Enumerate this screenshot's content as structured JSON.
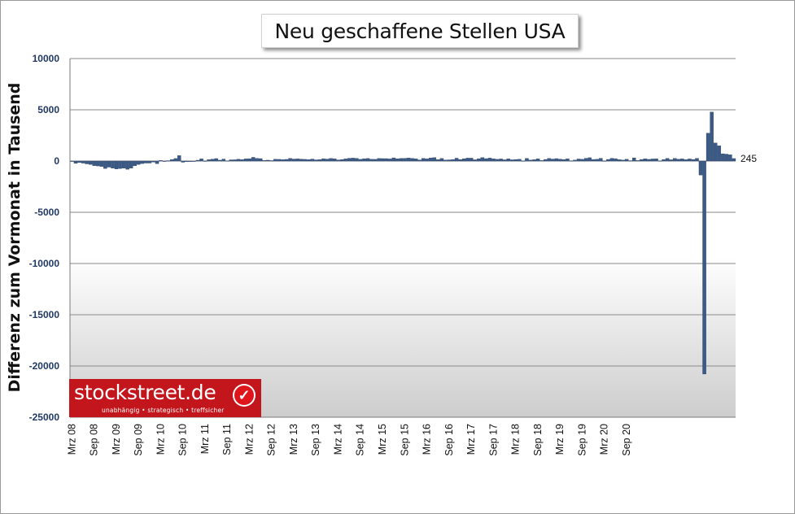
{
  "title": "Neu geschaffene Stellen USA",
  "ylabel": "Differenz zum Vormonat in Tausend",
  "logo": {
    "name": "stockstreet.de",
    "tagline": "unabhängig • strategisch • treffsicher",
    "check_icon": "check-icon"
  },
  "colors": {
    "bar": "#3b5a86",
    "bar_edge": "#1c3358",
    "axis_text": "#1f3864",
    "logo_red": "#c3161c"
  },
  "chart_data": {
    "type": "bar",
    "title": "Neu geschaffene Stellen USA",
    "ylabel": "Differenz zum Vormonat in Tausend",
    "ylim": [
      -25000,
      10000
    ],
    "yticks": [
      10000,
      5000,
      0,
      -5000,
      -10000,
      -15000,
      -20000,
      -25000
    ],
    "ytick_labels": [
      "10000",
      "5000",
      "0",
      "-5000",
      "-10000",
      "-15000",
      "-20000",
      "-25000"
    ],
    "grid": true,
    "start": "Mrz 08",
    "xtick_labels": [
      "Mrz 08",
      "Sep 08",
      "Mrz 09",
      "Sep 09",
      "Mrz 10",
      "Sep 10",
      "Mrz 11",
      "Sep 11",
      "Mrz 12",
      "Sep 12",
      "Mrz 13",
      "Sep 13",
      "Mrz 14",
      "Sep 14",
      "Mrz 15",
      "Sep 15",
      "Mrz 16",
      "Sep 16",
      "Mrz 17",
      "Sep 17",
      "Mrz 18",
      "Sep 18",
      "Mrz 19",
      "Sep 19",
      "Mrz 20",
      "Sep 20"
    ],
    "last_value_label": "245",
    "values": [
      -49,
      -231,
      -150,
      -204,
      -279,
      -334,
      -452,
      -481,
      -533,
      -726,
      -596,
      -692,
      -779,
      -741,
      -696,
      -805,
      -699,
      -467,
      -341,
      -248,
      -200,
      -199,
      -106,
      -261,
      57,
      -19,
      39,
      150,
      248,
      531,
      -120,
      -65,
      -57,
      -10,
      80,
      215,
      8,
      132,
      187,
      242,
      85,
      194,
      23,
      118,
      125,
      184,
      140,
      211,
      230,
      360,
      262,
      240,
      54,
      85,
      44,
      176,
      165,
      142,
      161,
      258,
      196,
      215,
      190,
      165,
      142,
      194,
      119,
      144,
      229,
      193,
      255,
      223,
      113,
      149,
      211,
      272,
      286,
      264,
      167,
      228,
      248,
      176,
      167,
      250,
      241,
      239,
      206,
      311,
      226,
      251,
      265,
      296,
      259,
      219,
      111,
      266,
      211,
      302,
      335,
      142,
      251,
      104,
      117,
      150,
      279,
      150,
      227,
      287,
      283,
      125,
      227,
      337,
      237,
      288,
      220,
      169,
      207,
      123,
      217,
      123,
      153,
      176,
      14,
      255,
      100,
      134,
      216,
      50,
      155,
      257,
      195,
      239,
      190,
      145,
      221,
      29,
      94,
      200,
      171,
      271,
      325,
      155,
      176,
      270,
      11,
      159,
      268,
      232,
      140,
      95,
      178,
      38,
      312,
      56,
      153,
      224,
      164,
      203,
      225,
      19,
      151,
      266,
      128,
      261,
      184,
      214,
      136,
      208,
      152,
      261,
      -1373,
      -20787,
      2725,
      4781,
      1761,
      1493,
      711,
      672,
      610,
      245
    ]
  }
}
